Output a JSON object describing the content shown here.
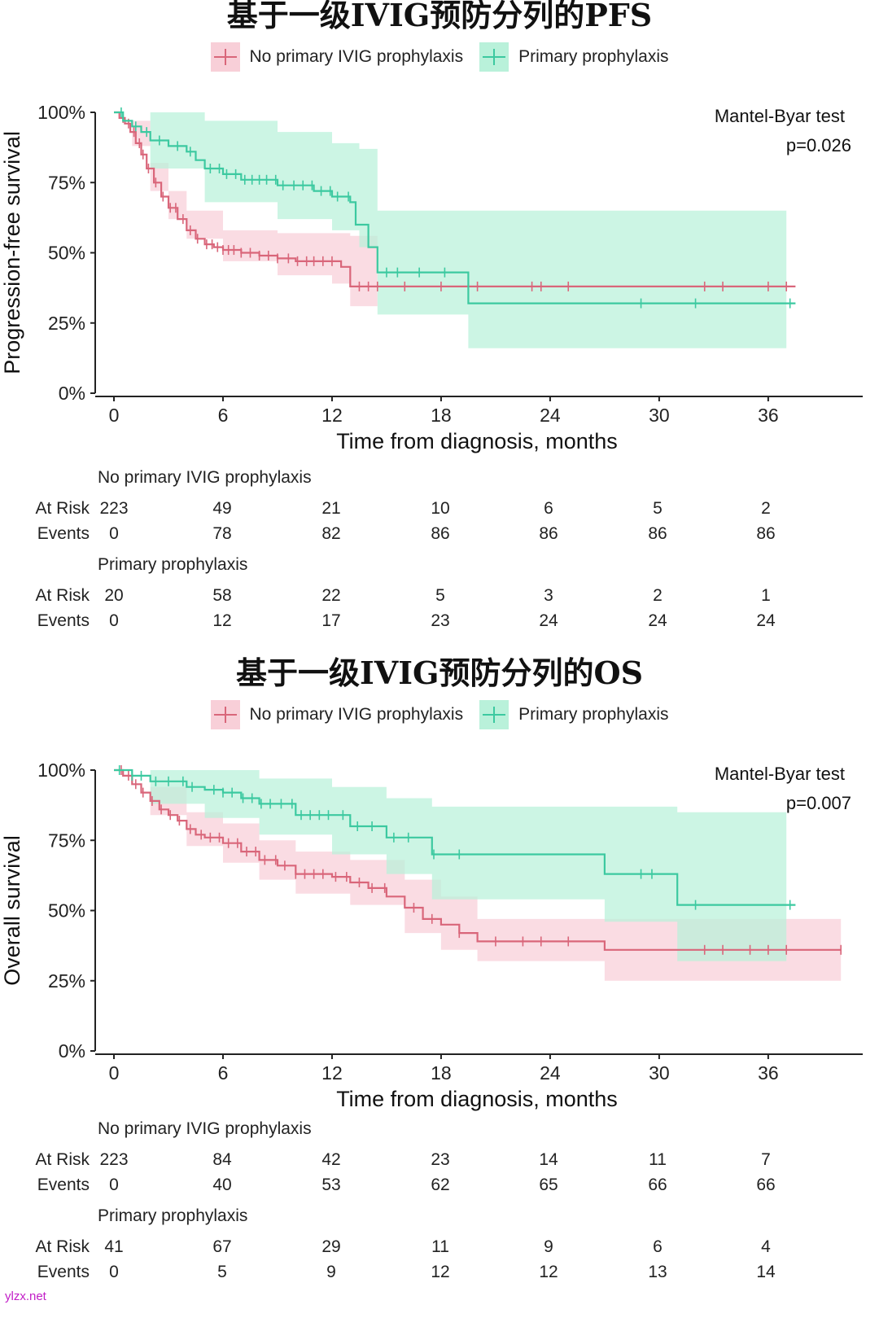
{
  "colors": {
    "no_ivig": "#d9667a",
    "no_ivig_fill": "#f8cfd8",
    "primary": "#3cc9a0",
    "primary_fill": "#b9f1da",
    "axis": "#222222"
  },
  "watermark": "ylzx.net",
  "charts": [
    {
      "title": "基于一级IVIG预防分列的PFS",
      "legend": [
        "No primary IVIG prophylaxis",
        "Primary prophylaxis"
      ],
      "test_name": "Mantel-Byar test",
      "p_value": "p=0.026",
      "ylabel": "Progression-free survival",
      "xlabel": "Time from diagnosis, months",
      "x_ticks": [
        "0",
        "6",
        "12",
        "18",
        "24",
        "30",
        "36"
      ],
      "y_ticks": [
        "0%",
        "25%",
        "50%",
        "75%",
        "100%"
      ],
      "risk_table": {
        "groups": [
          {
            "name": "No primary IVIG prophylaxis",
            "at_risk_label": "At Risk",
            "events_label": "Events",
            "at_risk": [
              "223",
              "49",
              "21",
              "10",
              "6",
              "5",
              "2"
            ],
            "events": [
              "0",
              "78",
              "82",
              "86",
              "86",
              "86",
              "86"
            ]
          },
          {
            "name": "Primary prophylaxis",
            "at_risk_label": "At Risk",
            "events_label": "Events",
            "at_risk": [
              "20",
              "58",
              "22",
              "5",
              "3",
              "2",
              "1"
            ],
            "events": [
              "0",
              "12",
              "17",
              "23",
              "24",
              "24",
              "24"
            ]
          }
        ]
      }
    },
    {
      "title": "基于一级IVIG预防分列的OS",
      "legend": [
        "No primary IVIG prophylaxis",
        "Primary prophylaxis"
      ],
      "test_name": "Mantel-Byar test",
      "p_value": "p=0.007",
      "ylabel": "Overall survival",
      "xlabel": "Time from diagnosis, months",
      "x_ticks": [
        "0",
        "6",
        "12",
        "18",
        "24",
        "30",
        "36"
      ],
      "y_ticks": [
        "0%",
        "25%",
        "50%",
        "75%",
        "100%"
      ],
      "risk_table": {
        "groups": [
          {
            "name": "No primary IVIG prophylaxis",
            "at_risk_label": "At Risk",
            "events_label": "Events",
            "at_risk": [
              "223",
              "84",
              "42",
              "23",
              "14",
              "11",
              "7"
            ],
            "events": [
              "0",
              "40",
              "53",
              "62",
              "65",
              "66",
              "66"
            ]
          },
          {
            "name": "Primary prophylaxis",
            "at_risk_label": "At Risk",
            "events_label": "Events",
            "at_risk": [
              "41",
              "67",
              "29",
              "11",
              "9",
              "6",
              "4"
            ],
            "events": [
              "0",
              "5",
              "9",
              "12",
              "12",
              "13",
              "14"
            ]
          }
        ]
      }
    }
  ],
  "chart_data": [
    {
      "type": "line",
      "title": "基于一级IVIG预防分列的PFS",
      "xlabel": "Time from diagnosis, months",
      "ylabel": "Progression-free survival",
      "xlim": [
        -1,
        41
      ],
      "ylim": [
        0,
        100
      ],
      "series": [
        {
          "name": "No primary IVIG prophylaxis",
          "steps": [
            [
              0,
              100
            ],
            [
              0.3,
              98
            ],
            [
              0.6,
              96
            ],
            [
              0.9,
              93
            ],
            [
              1.2,
              89
            ],
            [
              1.5,
              85
            ],
            [
              1.8,
              80
            ],
            [
              2.2,
              75
            ],
            [
              2.6,
              70
            ],
            [
              3.0,
              66
            ],
            [
              3.5,
              62
            ],
            [
              4.0,
              58
            ],
            [
              4.5,
              55
            ],
            [
              5.0,
              53
            ],
            [
              5.5,
              52
            ],
            [
              6.0,
              51
            ],
            [
              7,
              50
            ],
            [
              8,
              49
            ],
            [
              9,
              48
            ],
            [
              10,
              47
            ],
            [
              12.5,
              45
            ],
            [
              13,
              38
            ],
            [
              37.5,
              38
            ]
          ],
          "lower": [
            [
              0,
              100
            ],
            [
              1,
              88
            ],
            [
              2,
              72
            ],
            [
              3,
              62
            ],
            [
              4,
              55
            ],
            [
              6,
              47
            ],
            [
              9,
              42
            ],
            [
              12,
              39
            ],
            [
              13,
              31
            ],
            [
              14.5,
              31
            ]
          ],
          "upper": [
            [
              0,
              100
            ],
            [
              1,
              97
            ],
            [
              2,
              82
            ],
            [
              3,
              72
            ],
            [
              4,
              65
            ],
            [
              6,
              58
            ],
            [
              9,
              57
            ],
            [
              12.5,
              57
            ],
            [
              13,
              56
            ],
            [
              14.5,
              56
            ]
          ],
          "censored": [
            0.5,
            0.8,
            1.1,
            1.4,
            1.6,
            1.9,
            2.3,
            2.7,
            3.1,
            3.4,
            3.8,
            4.2,
            4.6,
            5.1,
            5.4,
            5.7,
            6.0,
            6.3,
            6.6,
            7.0,
            7.5,
            8.0,
            8.5,
            9.0,
            9.6,
            10.1,
            10.6,
            11.0,
            11.5,
            12.0,
            13.5,
            14.0,
            14.5,
            16.0,
            18.0,
            20.0,
            23.0,
            23.5,
            25.0,
            32.5,
            33.5,
            36.0,
            37.0
          ]
        },
        {
          "name": "Primary prophylaxis",
          "steps": [
            [
              0,
              100
            ],
            [
              0.5,
              97
            ],
            [
              1,
              95
            ],
            [
              1.5,
              93
            ],
            [
              2,
              90
            ],
            [
              3,
              88
            ],
            [
              4,
              86
            ],
            [
              4.5,
              83
            ],
            [
              5,
              80
            ],
            [
              6,
              78
            ],
            [
              7,
              76
            ],
            [
              9,
              74
            ],
            [
              11,
              72
            ],
            [
              12,
              70
            ],
            [
              13,
              68
            ],
            [
              13.3,
              60
            ],
            [
              14,
              52
            ],
            [
              14.5,
              43
            ],
            [
              19.5,
              43
            ],
            [
              19.5,
              32
            ],
            [
              37.5,
              32
            ]
          ],
          "lower": [
            [
              0,
              100
            ],
            [
              2,
              80
            ],
            [
              5,
              68
            ],
            [
              9,
              62
            ],
            [
              12,
              58
            ],
            [
              13.5,
              52
            ],
            [
              14.5,
              28
            ],
            [
              19.5,
              28
            ],
            [
              19.5,
              16
            ],
            [
              37,
              16
            ]
          ],
          "upper": [
            [
              0,
              100
            ],
            [
              2,
              100
            ],
            [
              5,
              97
            ],
            [
              9,
              93
            ],
            [
              12,
              89
            ],
            [
              13.5,
              87
            ],
            [
              14.5,
              65
            ],
            [
              37,
              65
            ]
          ],
          "censored": [
            0.4,
            1.2,
            1.8,
            2.5,
            3.5,
            4.2,
            5.3,
            5.8,
            6.2,
            6.7,
            7.2,
            7.6,
            8.0,
            8.4,
            8.9,
            9.3,
            9.9,
            10.4,
            10.9,
            11.4,
            11.9,
            12.3,
            12.9,
            15.0,
            15.6,
            16.8,
            18.2,
            29.0,
            32.0,
            37.2
          ]
        }
      ],
      "annotation": "Mantel-Byar test p=0.026"
    },
    {
      "type": "line",
      "title": "基于一级IVIG预防分列的OS",
      "xlabel": "Time from diagnosis, months",
      "ylabel": "Overall survival",
      "xlim": [
        -1,
        41
      ],
      "ylim": [
        0,
        100
      ],
      "series": [
        {
          "name": "No primary IVIG prophylaxis",
          "steps": [
            [
              0,
              100
            ],
            [
              0.5,
              98
            ],
            [
              1,
              95
            ],
            [
              1.5,
              92
            ],
            [
              2,
              89
            ],
            [
              2.5,
              86
            ],
            [
              3,
              84
            ],
            [
              3.5,
              82
            ],
            [
              4,
              79
            ],
            [
              4.5,
              77
            ],
            [
              5,
              76
            ],
            [
              6,
              74
            ],
            [
              7,
              71
            ],
            [
              8,
              68
            ],
            [
              9,
              66
            ],
            [
              10,
              63
            ],
            [
              12,
              62
            ],
            [
              13,
              60
            ],
            [
              14,
              58
            ],
            [
              15,
              55
            ],
            [
              16,
              51
            ],
            [
              17,
              47
            ],
            [
              18,
              45
            ],
            [
              19,
              42
            ],
            [
              20,
              39
            ],
            [
              27,
              39
            ],
            [
              27,
              36
            ],
            [
              40,
              36
            ]
          ],
          "lower": [
            [
              0,
              100
            ],
            [
              2,
              84
            ],
            [
              4,
              73
            ],
            [
              6,
              67
            ],
            [
              8,
              61
            ],
            [
              10,
              56
            ],
            [
              13,
              52
            ],
            [
              16,
              42
            ],
            [
              18,
              36
            ],
            [
              20,
              32
            ],
            [
              27,
              32
            ],
            [
              27,
              25
            ],
            [
              40,
              25
            ]
          ],
          "upper": [
            [
              0,
              100
            ],
            [
              2,
              94
            ],
            [
              4,
              85
            ],
            [
              6,
              81
            ],
            [
              8,
              75
            ],
            [
              10,
              71
            ],
            [
              13,
              68
            ],
            [
              16,
              61
            ],
            [
              18,
              55
            ],
            [
              20,
              47
            ],
            [
              27,
              47
            ],
            [
              27,
              47
            ],
            [
              40,
              51
            ]
          ],
          "censored": [
            0.4,
            0.8,
            1.2,
            1.6,
            2.1,
            2.6,
            3.1,
            3.6,
            4.2,
            4.8,
            5.3,
            5.8,
            6.3,
            6.8,
            7.3,
            7.8,
            8.3,
            8.9,
            9.4,
            10.0,
            10.5,
            11.0,
            11.5,
            12.2,
            12.8,
            13.5,
            14.2,
            14.9,
            16.5,
            17.5,
            19.0,
            21.0,
            22.5,
            23.5,
            25.0,
            32.5,
            33.5,
            35.0,
            36.0,
            37.0,
            40.0
          ]
        },
        {
          "name": "Primary prophylaxis",
          "steps": [
            [
              0,
              100
            ],
            [
              1,
              98
            ],
            [
              2,
              96
            ],
            [
              4,
              94
            ],
            [
              5,
              93
            ],
            [
              6,
              92
            ],
            [
              7,
              90
            ],
            [
              8,
              88
            ],
            [
              10,
              84
            ],
            [
              13,
              80
            ],
            [
              15,
              76
            ],
            [
              17,
              76
            ],
            [
              17.5,
              70
            ],
            [
              27,
              70
            ],
            [
              27,
              63
            ],
            [
              31,
              63
            ],
            [
              31,
              52
            ],
            [
              37.5,
              52
            ]
          ],
          "lower": [
            [
              0,
              100
            ],
            [
              2,
              88
            ],
            [
              5,
              83
            ],
            [
              8,
              77
            ],
            [
              12,
              70
            ],
            [
              15,
              63
            ],
            [
              17.5,
              54
            ],
            [
              27,
              54
            ],
            [
              27,
              46
            ],
            [
              31,
              46
            ],
            [
              31,
              32
            ],
            [
              37,
              32
            ]
          ],
          "upper": [
            [
              0,
              100
            ],
            [
              5,
              100
            ],
            [
              8,
              97
            ],
            [
              12,
              94
            ],
            [
              15,
              90
            ],
            [
              17.5,
              87
            ],
            [
              27,
              87
            ],
            [
              31,
              85
            ],
            [
              37,
              85
            ]
          ],
          "censored": [
            0.3,
            1.0,
            1.5,
            2.3,
            3.0,
            3.8,
            4.3,
            5.5,
            6.0,
            6.5,
            7.1,
            7.6,
            8.1,
            8.6,
            9.2,
            9.8,
            10.3,
            10.8,
            11.3,
            11.8,
            12.6,
            13.4,
            14.2,
            15.4,
            16.2,
            17.6,
            19.0,
            29.0,
            29.6,
            32.0,
            37.2
          ]
        }
      ],
      "annotation": "Mantel-Byar test p=0.007"
    }
  ]
}
